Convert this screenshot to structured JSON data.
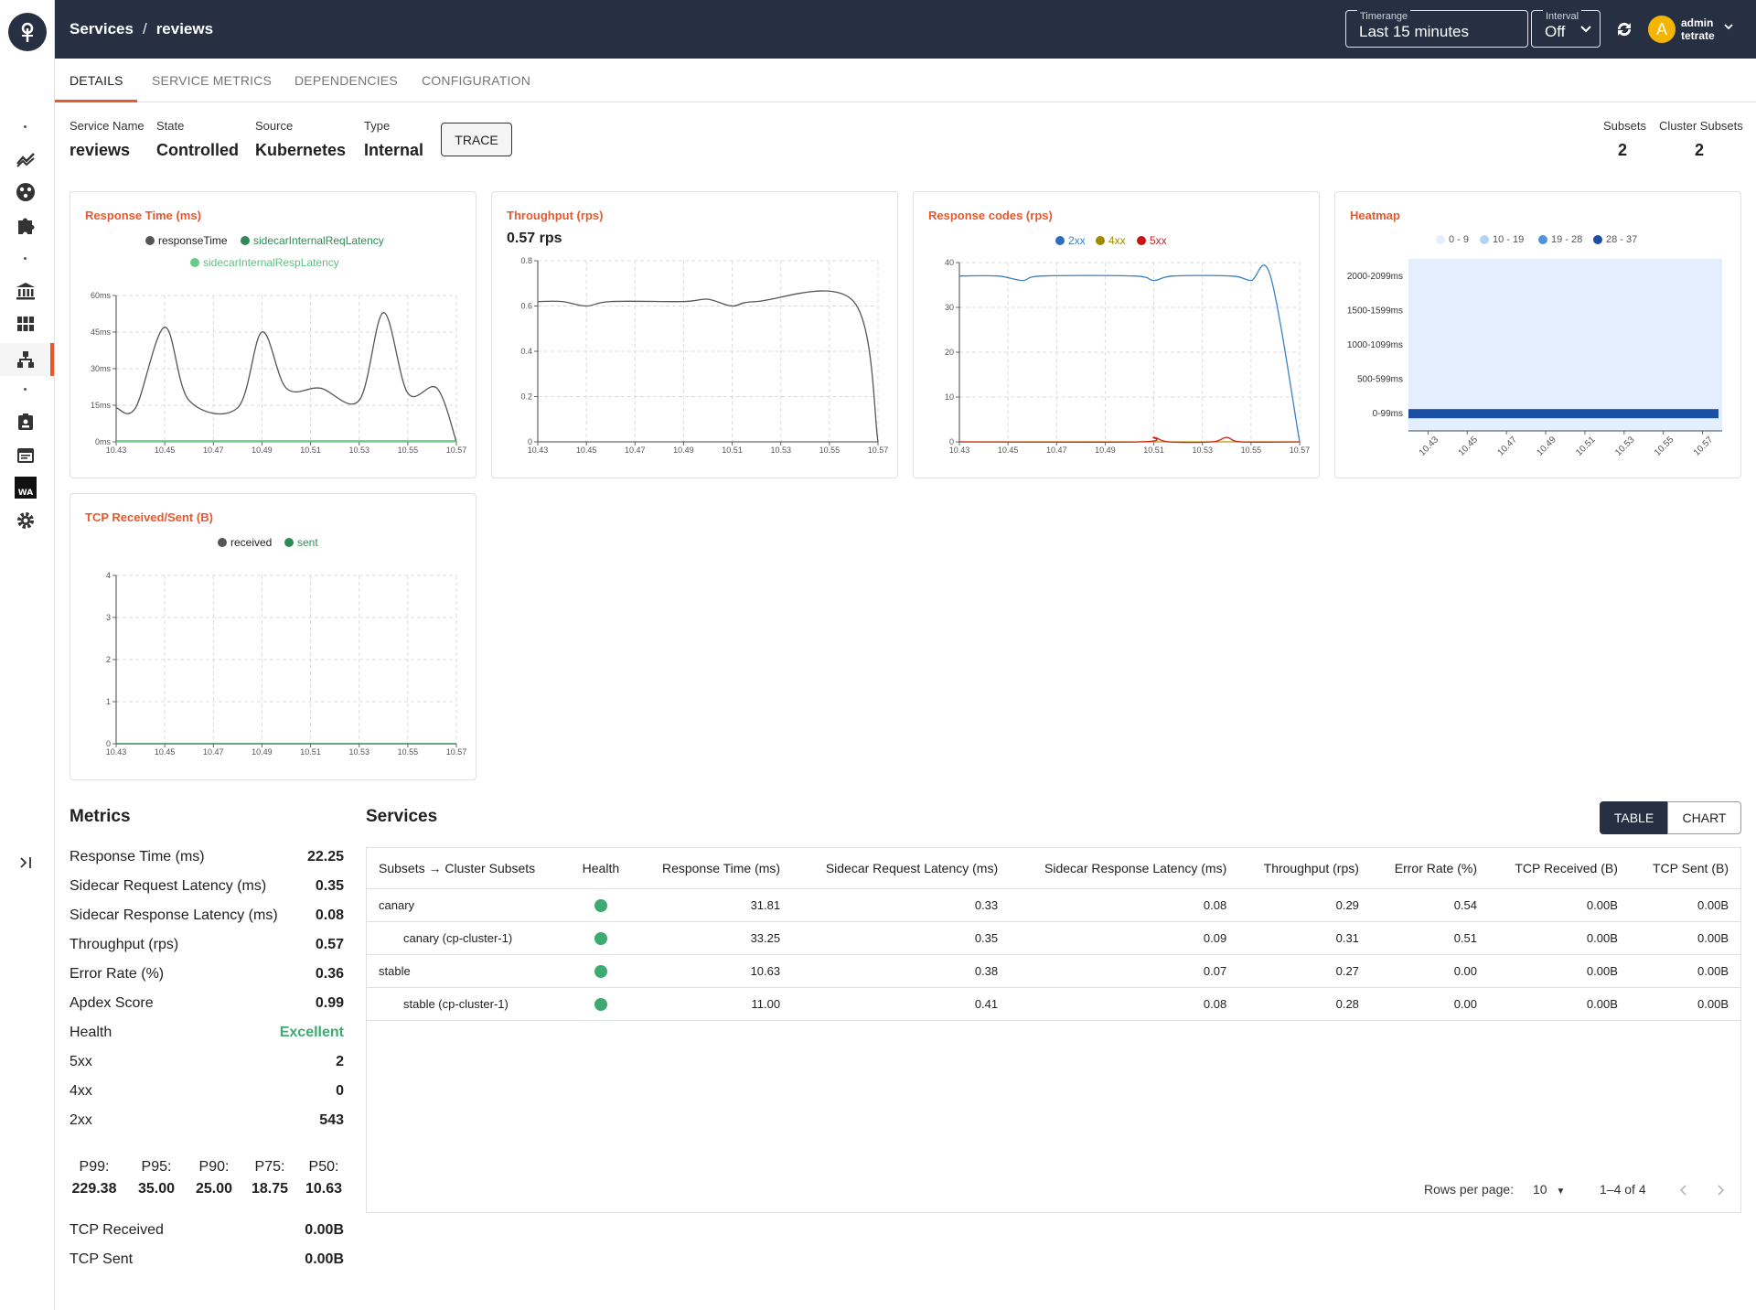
{
  "header": {
    "crumb_root": "Services",
    "crumb_sep": "/",
    "crumb_current": "reviews",
    "timerange_label": "Timerange",
    "timerange_value": "Last 15 minutes",
    "interval_label": "Interval",
    "interval_value": "Off",
    "avatar_letter": "A",
    "user_name": "admin",
    "user_org": "tetrate"
  },
  "tabs": [
    "DETAILS",
    "SERVICE METRICS",
    "DEPENDENCIES",
    "CONFIGURATION"
  ],
  "info": {
    "service_name_label": "Service Name",
    "service_name": "reviews",
    "state_label": "State",
    "state": "Controlled",
    "source_label": "Source",
    "source": "Kubernetes",
    "type_label": "Type",
    "type": "Internal",
    "trace_label": "TRACE",
    "subsets_label": "Subsets",
    "subsets": "2",
    "cluster_subsets_label": "Cluster Subsets",
    "cluster_subsets": "2"
  },
  "cards": {
    "response_time": {
      "title": "Response Time (ms)",
      "legend": [
        "responseTime",
        "sidecarInternalReqLatency",
        "sidecarInternalRespLatency"
      ]
    },
    "throughput": {
      "title": "Throughput (rps)",
      "value": "0.57 rps"
    },
    "response_codes": {
      "title": "Response codes (rps)",
      "legend": [
        "2xx",
        "4xx",
        "5xx"
      ]
    },
    "heatmap": {
      "title": "Heatmap",
      "legend": [
        "0 - 9",
        "10 - 19",
        "19 - 28",
        "28 - 37"
      ]
    },
    "tcp": {
      "title": "TCP Received/Sent (B)",
      "legend": [
        "received",
        "sent"
      ]
    }
  },
  "chart_data": [
    {
      "type": "line",
      "title": "Response Time (ms)",
      "x": [
        "10.43",
        "10.45",
        "10.47",
        "10.49",
        "10.51",
        "10.53",
        "10.55",
        "10.57"
      ],
      "yticks": [
        "0ms",
        "15ms",
        "30ms",
        "45ms",
        "60ms"
      ],
      "ylim": [
        0,
        60
      ],
      "series": [
        {
          "name": "responseTime",
          "color": "#555555",
          "values": [
            [
              0,
              14
            ],
            [
              0.4,
              14
            ],
            [
              1,
              47
            ],
            [
              1.5,
              17
            ],
            [
              2.5,
              14
            ],
            [
              3,
              45
            ],
            [
              3.5,
              22
            ],
            [
              4.2,
              22
            ],
            [
              5,
              17
            ],
            [
              5.5,
              53
            ],
            [
              6,
              20
            ],
            [
              6.6,
              22
            ],
            [
              7,
              0
            ]
          ]
        },
        {
          "name": "sidecarInternalReqLatency",
          "color": "#2e8b57",
          "values": [
            [
              0,
              0.3
            ],
            [
              7,
              0.3
            ]
          ]
        },
        {
          "name": "sidecarInternalRespLatency",
          "color": "#66cc88",
          "values": [
            [
              0,
              0.1
            ],
            [
              7,
              0.1
            ]
          ]
        }
      ]
    },
    {
      "type": "line",
      "title": "Throughput (rps)",
      "x": [
        "10.43",
        "10.45",
        "10.47",
        "10.49",
        "10.51",
        "10.53",
        "10.55",
        "10.57"
      ],
      "yticks": [
        "0",
        "0.2",
        "0.4",
        "0.6",
        "0.8"
      ],
      "ylim": [
        0,
        0.8
      ],
      "series": [
        {
          "name": "throughput",
          "color": "#555555",
          "values": [
            [
              0,
              0.62
            ],
            [
              0.5,
              0.62
            ],
            [
              1,
              0.6
            ],
            [
              1.5,
              0.62
            ],
            [
              3,
              0.62
            ],
            [
              3.5,
              0.63
            ],
            [
              4,
              0.6
            ],
            [
              4.5,
              0.62
            ],
            [
              6.5,
              0.62
            ],
            [
              7,
              0
            ]
          ]
        }
      ]
    },
    {
      "type": "line",
      "title": "Response codes (rps)",
      "x": [
        "10.43",
        "10.45",
        "10.47",
        "10.49",
        "10.51",
        "10.53",
        "10.55",
        "10.57"
      ],
      "yticks": [
        "0",
        "10",
        "20",
        "30",
        "40"
      ],
      "ylim": [
        0,
        40
      ],
      "series": [
        {
          "name": "2xx",
          "color": "#3b82c4",
          "values": [
            [
              0,
              37
            ],
            [
              0.8,
              37
            ],
            [
              1.3,
              36
            ],
            [
              1.7,
              37
            ],
            [
              3.6,
              37
            ],
            [
              4,
              36
            ],
            [
              4.4,
              37
            ],
            [
              5.6,
              37
            ],
            [
              6,
              36
            ],
            [
              6.4,
              37
            ],
            [
              7,
              0
            ]
          ]
        },
        {
          "name": "4xx",
          "color": "#b59a00",
          "values": [
            [
              0,
              0
            ],
            [
              7,
              0
            ]
          ]
        },
        {
          "name": "5xx",
          "color": "#cc2222",
          "values": [
            [
              0,
              0
            ],
            [
              3.7,
              0
            ],
            [
              4,
              1
            ],
            [
              4.3,
              0
            ],
            [
              5.2,
              0
            ],
            [
              5.5,
              1
            ],
            [
              5.8,
              0
            ],
            [
              7,
              0
            ]
          ]
        }
      ]
    },
    {
      "type": "heatmap",
      "title": "Heatmap",
      "x": [
        "10.43",
        "10.45",
        "10.47",
        "10.49",
        "10.51",
        "10.53",
        "10.55",
        "10.57"
      ],
      "y": [
        "0-99ms",
        "500-599ms",
        "1000-1099ms",
        "1500-1599ms",
        "2000-2099ms"
      ],
      "filled_row": "0-99ms",
      "filled_bucket": "28 - 37"
    },
    {
      "type": "line",
      "title": "TCP Received/Sent (B)",
      "x": [
        "10.43",
        "10.45",
        "10.47",
        "10.49",
        "10.51",
        "10.53",
        "10.55",
        "10.57"
      ],
      "yticks": [
        "0",
        "1",
        "2",
        "3",
        "4"
      ],
      "ylim": [
        0,
        4
      ],
      "series": [
        {
          "name": "received",
          "color": "#555555",
          "values": [
            [
              0,
              0
            ],
            [
              7,
              0
            ]
          ]
        },
        {
          "name": "sent",
          "color": "#2e8b57",
          "values": [
            [
              0,
              0
            ],
            [
              7,
              0
            ]
          ]
        }
      ]
    }
  ],
  "metrics": {
    "title": "Metrics",
    "rows": [
      {
        "label": "Response Time (ms)",
        "value": "22.25"
      },
      {
        "label": "Sidecar Request Latency (ms)",
        "value": "0.35"
      },
      {
        "label": "Sidecar Response Latency (ms)",
        "value": "0.08"
      },
      {
        "label": "Throughput (rps)",
        "value": "0.57"
      },
      {
        "label": "Error Rate (%)",
        "value": "0.36"
      },
      {
        "label": "Apdex Score",
        "value": "0.99"
      },
      {
        "label": "Health",
        "value": "Excellent"
      },
      {
        "label": "5xx",
        "value": "2"
      },
      {
        "label": "4xx",
        "value": "0"
      },
      {
        "label": "2xx",
        "value": "543"
      }
    ],
    "percentiles": [
      {
        "label": "P99:",
        "value": "229.38"
      },
      {
        "label": "P95:",
        "value": "35.00"
      },
      {
        "label": "P90:",
        "value": "25.00"
      },
      {
        "label": "P75:",
        "value": "18.75"
      },
      {
        "label": "P50:",
        "value": "10.63"
      }
    ],
    "tcp_received_label": "TCP Received",
    "tcp_received": "0.00B",
    "tcp_sent_label": "TCP Sent",
    "tcp_sent": "0.00B"
  },
  "services": {
    "title": "Services",
    "table_label": "TABLE",
    "chart_label": "CHART",
    "columns": [
      "Subsets → Cluster Subsets",
      "Health",
      "Response Time (ms)",
      "Sidecar Request Latency (ms)",
      "Sidecar Response Latency (ms)",
      "Throughput (rps)",
      "Error Rate (%)",
      "TCP Received (B)",
      "TCP Sent (B)"
    ],
    "rows": [
      {
        "name": "canary",
        "rt": "31.81",
        "req": "0.33",
        "resp": "0.08",
        "tp": "0.29",
        "err": "0.54",
        "rx": "0.00B",
        "tx": "0.00B"
      },
      {
        "name": "canary (cp-cluster-1)",
        "rt": "33.25",
        "req": "0.35",
        "resp": "0.09",
        "tp": "0.31",
        "err": "0.51",
        "rx": "0.00B",
        "tx": "0.00B"
      },
      {
        "name": "stable",
        "rt": "10.63",
        "req": "0.38",
        "resp": "0.07",
        "tp": "0.27",
        "err": "0.00",
        "rx": "0.00B",
        "tx": "0.00B"
      },
      {
        "name": "stable (cp-cluster-1)",
        "rt": "11.00",
        "req": "0.41",
        "resp": "0.08",
        "tp": "0.28",
        "err": "0.00",
        "rx": "0.00B",
        "tx": "0.00B"
      }
    ],
    "rows_per_page_label": "Rows per page:",
    "rows_per_page": "10",
    "range": "1–4 of 4"
  },
  "colors": {
    "accent": "#e8582c",
    "header": "#263042",
    "health": "#3daa72"
  }
}
